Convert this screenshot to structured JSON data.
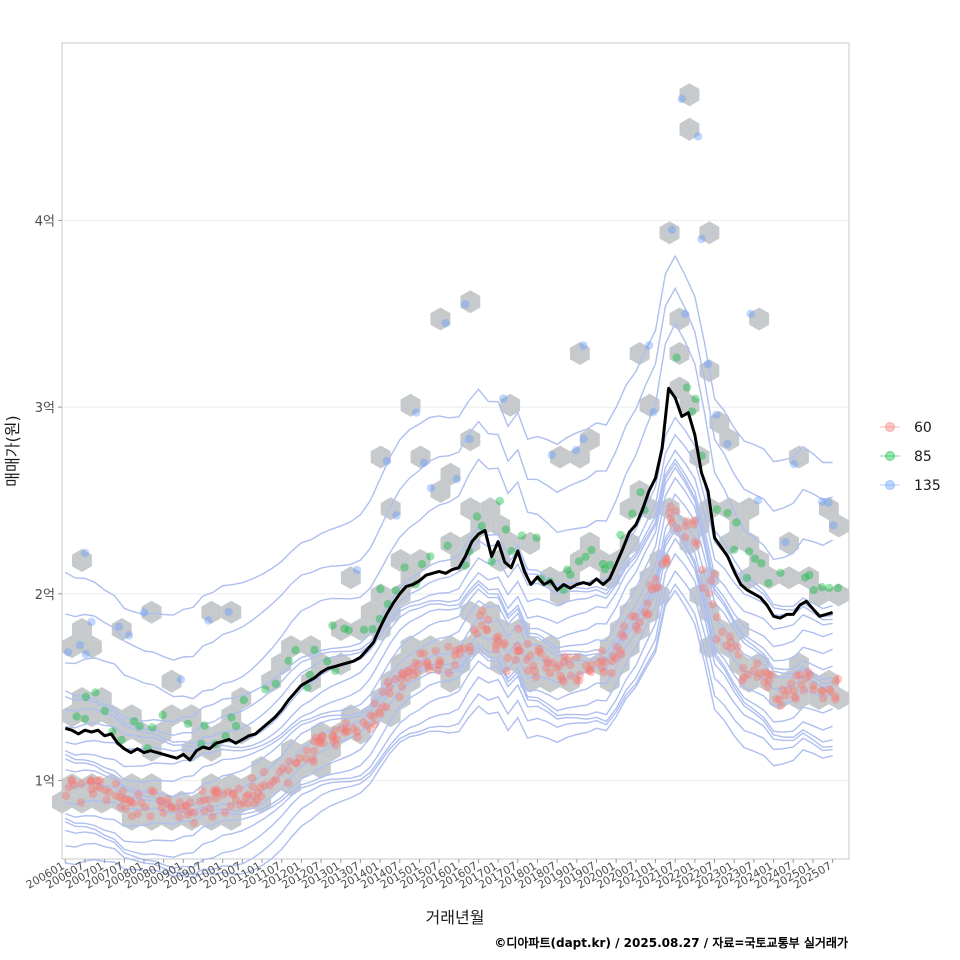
{
  "chart_data": {
    "type": "scatter",
    "xlabel": "거래년월",
    "ylabel": "매매가(원)",
    "caption": "©디아파트(dapt.kr) / 2025.08.27 / 자료=국토교통부 실거래가",
    "x_range": [
      "200512",
      "202512"
    ],
    "ylim": [
      0.58,
      4.95
    ],
    "y_unit": "억",
    "y_ticks": [
      {
        "value": 1,
        "label": "1억"
      },
      {
        "value": 2,
        "label": "2억"
      },
      {
        "value": 3,
        "label": "3억"
      },
      {
        "value": 4,
        "label": "4억"
      }
    ],
    "x_tick_labels": [
      "200601",
      "200607",
      "200701",
      "200707",
      "200801",
      "200807",
      "200901",
      "200907",
      "201001",
      "201007",
      "201101",
      "201107",
      "201201",
      "201207",
      "201301",
      "201307",
      "201401",
      "201407",
      "201501",
      "201507",
      "201601",
      "201607",
      "201701",
      "201707",
      "201801",
      "201807",
      "201901",
      "201907",
      "202001",
      "202007",
      "202101",
      "202107",
      "202201",
      "202207",
      "202301",
      "202307",
      "202401",
      "202407",
      "202501",
      "202507"
    ],
    "legend": [
      {
        "label": "60",
        "color": "#F8766D"
      },
      {
        "label": "85",
        "color": "#00BA38"
      },
      {
        "label": "135",
        "color": "#619CFF"
      }
    ],
    "hex_color": "#c6cacc",
    "contour_color": "#aebff0",
    "trend_line": {
      "name": "이동평균",
      "color": "#000000",
      "points": [
        [
          "200601",
          1.28
        ],
        [
          "200603",
          1.27
        ],
        [
          "200605",
          1.25
        ],
        [
          "200607",
          1.27
        ],
        [
          "200609",
          1.26
        ],
        [
          "200611",
          1.27
        ],
        [
          "200701",
          1.24
        ],
        [
          "200703",
          1.25
        ],
        [
          "200705",
          1.2
        ],
        [
          "200707",
          1.17
        ],
        [
          "200709",
          1.15
        ],
        [
          "200711",
          1.17
        ],
        [
          "200801",
          1.15
        ],
        [
          "200803",
          1.16
        ],
        [
          "200805",
          1.15
        ],
        [
          "200807",
          1.14
        ],
        [
          "200809",
          1.13
        ],
        [
          "200811",
          1.12
        ],
        [
          "200901",
          1.14
        ],
        [
          "200903",
          1.11
        ],
        [
          "200905",
          1.16
        ],
        [
          "200907",
          1.18
        ],
        [
          "200909",
          1.17
        ],
        [
          "200911",
          1.2
        ],
        [
          "201001",
          1.21
        ],
        [
          "201003",
          1.22
        ],
        [
          "201005",
          1.2
        ],
        [
          "201007",
          1.22
        ],
        [
          "201009",
          1.24
        ],
        [
          "201011",
          1.25
        ],
        [
          "201101",
          1.28
        ],
        [
          "201103",
          1.31
        ],
        [
          "201105",
          1.34
        ],
        [
          "201107",
          1.38
        ],
        [
          "201109",
          1.43
        ],
        [
          "201111",
          1.47
        ],
        [
          "201201",
          1.51
        ],
        [
          "201203",
          1.53
        ],
        [
          "201205",
          1.55
        ],
        [
          "201207",
          1.58
        ],
        [
          "201209",
          1.6
        ],
        [
          "201211",
          1.61
        ],
        [
          "201301",
          1.62
        ],
        [
          "201303",
          1.63
        ],
        [
          "201305",
          1.64
        ],
        [
          "201307",
          1.66
        ],
        [
          "201309",
          1.7
        ],
        [
          "201311",
          1.74
        ],
        [
          "201401",
          1.82
        ],
        [
          "201403",
          1.89
        ],
        [
          "201405",
          1.95
        ],
        [
          "201407",
          2.0
        ],
        [
          "201409",
          2.04
        ],
        [
          "201411",
          2.05
        ],
        [
          "201501",
          2.07
        ],
        [
          "201503",
          2.1
        ],
        [
          "201505",
          2.11
        ],
        [
          "201507",
          2.12
        ],
        [
          "201509",
          2.11
        ],
        [
          "201511",
          2.13
        ],
        [
          "201601",
          2.14
        ],
        [
          "201603",
          2.2
        ],
        [
          "201605",
          2.28
        ],
        [
          "201607",
          2.32
        ],
        [
          "201609",
          2.34
        ],
        [
          "201611",
          2.2
        ],
        [
          "201701",
          2.28
        ],
        [
          "201703",
          2.17
        ],
        [
          "201705",
          2.14
        ],
        [
          "201707",
          2.23
        ],
        [
          "201709",
          2.12
        ],
        [
          "201711",
          2.05
        ],
        [
          "201801",
          2.09
        ],
        [
          "201803",
          2.05
        ],
        [
          "201805",
          2.07
        ],
        [
          "201807",
          2.02
        ],
        [
          "201809",
          2.05
        ],
        [
          "201811",
          2.03
        ],
        [
          "201901",
          2.05
        ],
        [
          "201903",
          2.06
        ],
        [
          "201905",
          2.05
        ],
        [
          "201907",
          2.08
        ],
        [
          "201909",
          2.05
        ],
        [
          "201911",
          2.08
        ],
        [
          "202001",
          2.16
        ],
        [
          "202003",
          2.24
        ],
        [
          "202005",
          2.33
        ],
        [
          "202007",
          2.37
        ],
        [
          "202009",
          2.45
        ],
        [
          "202011",
          2.55
        ],
        [
          "202101",
          2.62
        ],
        [
          "202103",
          2.78
        ],
        [
          "202105",
          3.1
        ],
        [
          "202107",
          3.05
        ],
        [
          "202109",
          2.95
        ],
        [
          "202111",
          2.97
        ],
        [
          "202201",
          2.85
        ],
        [
          "202203",
          2.65
        ],
        [
          "202205",
          2.55
        ],
        [
          "202207",
          2.3
        ],
        [
          "202209",
          2.25
        ],
        [
          "202211",
          2.2
        ],
        [
          "202301",
          2.12
        ],
        [
          "202303",
          2.05
        ],
        [
          "202305",
          2.02
        ],
        [
          "202307",
          2.0
        ],
        [
          "202309",
          1.98
        ],
        [
          "202311",
          1.94
        ],
        [
          "202401",
          1.88
        ],
        [
          "202403",
          1.87
        ],
        [
          "202405",
          1.89
        ],
        [
          "202407",
          1.89
        ],
        [
          "202409",
          1.94
        ],
        [
          "202411",
          1.96
        ],
        [
          "202501",
          1.92
        ],
        [
          "202503",
          1.88
        ],
        [
          "202505",
          1.89
        ],
        [
          "202507",
          1.9
        ]
      ]
    }
  }
}
